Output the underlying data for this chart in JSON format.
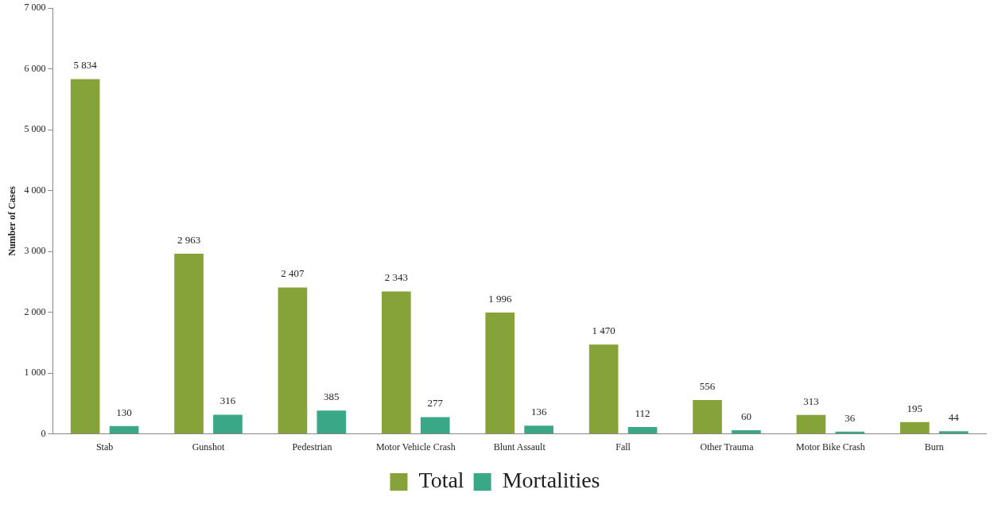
{
  "chart_data": {
    "type": "bar",
    "ylabel": "Number of Cases",
    "categories": [
      "Stab",
      "Gunshot",
      "Pedestrian",
      "Motor Vehicle Crash",
      "Blunt Assault",
      "Fall",
      "Other Trauma",
      "Motor Bike Crash",
      "Burn"
    ],
    "series": [
      {
        "name": "Total",
        "color": "#86a33a",
        "values": [
          5834,
          2963,
          2407,
          2343,
          1996,
          1470,
          556,
          313,
          195
        ],
        "value_labels": [
          "5 834",
          "2 963",
          "2 407",
          "2 343",
          "1 996",
          "1 470",
          "556",
          "313",
          "195"
        ]
      },
      {
        "name": "Mortalities",
        "color": "#3aa886",
        "values": [
          130,
          316,
          385,
          277,
          136,
          112,
          60,
          36,
          44
        ],
        "value_labels": [
          "130",
          "316",
          "385",
          "277",
          "136",
          "112",
          "60",
          "36",
          "44"
        ]
      }
    ],
    "ylim": [
      0,
      7000
    ],
    "yticks": [
      0,
      {
        "value": 1000,
        "label": "1 000"
      },
      {
        "value": 2000,
        "label": "2 000"
      },
      {
        "value": 3000,
        "label": "3 000"
      },
      {
        "value": 4000,
        "label": "4 000"
      },
      {
        "value": 5000,
        "label": "5 000"
      },
      {
        "value": 6000,
        "label": "6 000"
      },
      {
        "value": 7000,
        "label": "7 000"
      }
    ],
    "grid": false,
    "legend": "bottom"
  }
}
